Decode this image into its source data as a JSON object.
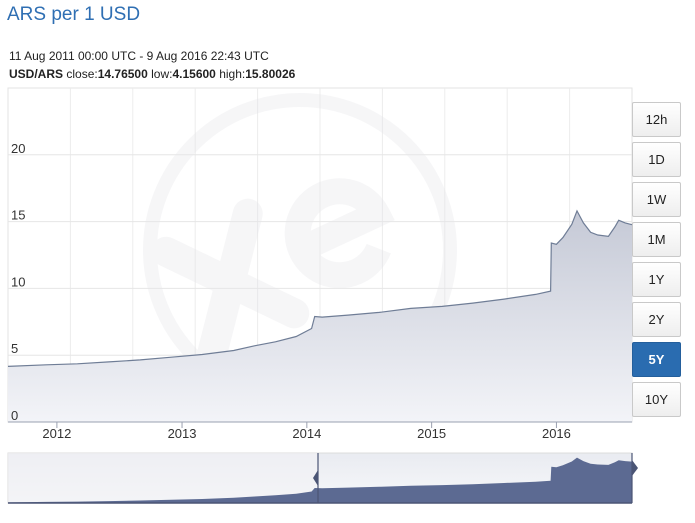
{
  "header": {
    "title": "ARS per 1 USD",
    "date_range": "11 Aug 2011 00:00 UTC - 9 Aug 2016 22:43 UTC",
    "pair": "USD/ARS",
    "close_label": "close:",
    "close": "14.76500",
    "low_label": "low:",
    "low": "4.15600",
    "high_label": "high:",
    "high": "15.80026"
  },
  "range_buttons": [
    {
      "label": "12h",
      "active": false
    },
    {
      "label": "1D",
      "active": false
    },
    {
      "label": "1W",
      "active": false
    },
    {
      "label": "1M",
      "active": false
    },
    {
      "label": "1Y",
      "active": false
    },
    {
      "label": "2Y",
      "active": false
    },
    {
      "label": "5Y",
      "active": true
    },
    {
      "label": "10Y",
      "active": false
    }
  ],
  "colors": {
    "title": "#2f6fb3",
    "series_line": "#6f7d96",
    "series_fill_top": "#c5c9d6",
    "series_fill_bottom": "#f3f4f8",
    "navigator_fill": "#5c6a92",
    "active_button": "#2a6cb0"
  },
  "chart_data": {
    "type": "area",
    "title": "",
    "xlabel": "",
    "ylabel": "",
    "ylim": [
      0,
      25
    ],
    "yticks": [
      0,
      5,
      10,
      15,
      20
    ],
    "xticks": [
      "2012",
      "2013",
      "2014",
      "2015",
      "2016"
    ],
    "grid": true,
    "x_range": [
      "2011-08-11",
      "2016-08-09"
    ],
    "series": [
      {
        "name": "",
        "points": [
          [
            "2011-08-11",
            4.16
          ],
          [
            "2011-12-01",
            4.28
          ],
          [
            "2012-03-01",
            4.36
          ],
          [
            "2012-06-01",
            4.5
          ],
          [
            "2012-09-01",
            4.65
          ],
          [
            "2012-12-01",
            4.85
          ],
          [
            "2013-03-01",
            5.05
          ],
          [
            "2013-06-01",
            5.35
          ],
          [
            "2013-08-01",
            5.7
          ],
          [
            "2013-10-01",
            6.0
          ],
          [
            "2013-12-01",
            6.4
          ],
          [
            "2014-01-15",
            7.0
          ],
          [
            "2014-01-24",
            7.9
          ],
          [
            "2014-02-15",
            7.85
          ],
          [
            "2014-05-01",
            8.0
          ],
          [
            "2014-08-01",
            8.2
          ],
          [
            "2014-11-01",
            8.5
          ],
          [
            "2015-02-01",
            8.65
          ],
          [
            "2015-05-01",
            8.9
          ],
          [
            "2015-08-01",
            9.2
          ],
          [
            "2015-11-01",
            9.55
          ],
          [
            "2015-12-15",
            9.8
          ],
          [
            "2015-12-17",
            13.4
          ],
          [
            "2016-01-01",
            13.3
          ],
          [
            "2016-01-20",
            13.8
          ],
          [
            "2016-02-15",
            14.8
          ],
          [
            "2016-03-01",
            15.8
          ],
          [
            "2016-03-20",
            14.9
          ],
          [
            "2016-04-10",
            14.2
          ],
          [
            "2016-05-01",
            14.0
          ],
          [
            "2016-06-01",
            13.9
          ],
          [
            "2016-06-20",
            14.6
          ],
          [
            "2016-07-01",
            15.1
          ],
          [
            "2016-07-20",
            14.9
          ],
          [
            "2016-08-09",
            14.77
          ]
        ]
      }
    ]
  }
}
